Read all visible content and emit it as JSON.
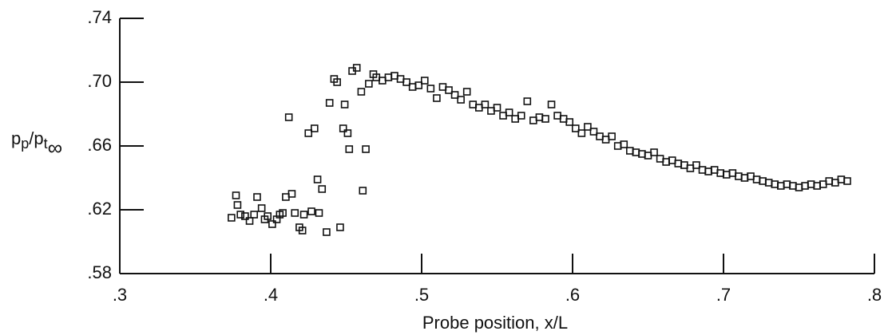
{
  "chart_data": {
    "type": "scatter",
    "x_label": "Probe position, x/L",
    "y_label_parts": [
      "p",
      "p",
      "/p",
      "t",
      "∞"
    ],
    "marker": "square",
    "color": "#111111",
    "xlim": [
      0.3,
      0.8
    ],
    "ylim": [
      0.58,
      0.74
    ],
    "xticks": [
      {
        "value": 0.3,
        "label": ".3"
      },
      {
        "value": 0.4,
        "label": ".4"
      },
      {
        "value": 0.5,
        "label": ".5"
      },
      {
        "value": 0.6,
        "label": ".6"
      },
      {
        "value": 0.7,
        "label": ".7"
      },
      {
        "value": 0.8,
        "label": ".8"
      }
    ],
    "yticks": [
      {
        "value": 0.58,
        "label": ".58"
      },
      {
        "value": 0.62,
        "label": ".62"
      },
      {
        "value": 0.66,
        "label": ".66"
      },
      {
        "value": 0.7,
        "label": ".70"
      },
      {
        "value": 0.74,
        "label": ".74"
      }
    ],
    "series": [
      {
        "name": null,
        "color": "#111111",
        "x": [
          0.374,
          0.377,
          0.378,
          0.38,
          0.383,
          0.386,
          0.389,
          0.391,
          0.394,
          0.396,
          0.398,
          0.401,
          0.404,
          0.406,
          0.408,
          0.41,
          0.412,
          0.414,
          0.416,
          0.419,
          0.421,
          0.422,
          0.425,
          0.427,
          0.429,
          0.431,
          0.432,
          0.434,
          0.437,
          0.439,
          0.442,
          0.444,
          0.446,
          0.448,
          0.449,
          0.451,
          0.452,
          0.454,
          0.457,
          0.46,
          0.461,
          0.463,
          0.465,
          0.468,
          0.47,
          0.474,
          0.478,
          0.482,
          0.486,
          0.49,
          0.494,
          0.498,
          0.502,
          0.506,
          0.51,
          0.514,
          0.518,
          0.522,
          0.526,
          0.53,
          0.534,
          0.538,
          0.542,
          0.546,
          0.55,
          0.554,
          0.558,
          0.562,
          0.566,
          0.57,
          0.574,
          0.578,
          0.582,
          0.586,
          0.59,
          0.594,
          0.598,
          0.602,
          0.606,
          0.61,
          0.614,
          0.618,
          0.622,
          0.626,
          0.63,
          0.634,
          0.638,
          0.642,
          0.646,
          0.65,
          0.654,
          0.658,
          0.662,
          0.666,
          0.67,
          0.674,
          0.678,
          0.682,
          0.686,
          0.69,
          0.694,
          0.698,
          0.702,
          0.706,
          0.71,
          0.714,
          0.718,
          0.722,
          0.726,
          0.73,
          0.734,
          0.738,
          0.742,
          0.746,
          0.75,
          0.754,
          0.758,
          0.762,
          0.766,
          0.77,
          0.774,
          0.778,
          0.782
        ],
        "values": [
          0.615,
          0.629,
          0.623,
          0.617,
          0.616,
          0.613,
          0.617,
          0.628,
          0.621,
          0.614,
          0.616,
          0.611,
          0.614,
          0.617,
          0.618,
          0.628,
          0.678,
          0.63,
          0.618,
          0.609,
          0.607,
          0.617,
          0.668,
          0.619,
          0.671,
          0.639,
          0.618,
          0.633,
          0.606,
          0.687,
          0.702,
          0.7,
          0.609,
          0.671,
          0.686,
          0.668,
          0.658,
          0.707,
          0.709,
          0.694,
          0.632,
          0.658,
          0.699,
          0.705,
          0.703,
          0.701,
          0.703,
          0.704,
          0.702,
          0.7,
          0.697,
          0.698,
          0.701,
          0.696,
          0.69,
          0.697,
          0.695,
          0.692,
          0.689,
          0.694,
          0.686,
          0.684,
          0.686,
          0.682,
          0.684,
          0.679,
          0.681,
          0.677,
          0.679,
          0.688,
          0.676,
          0.678,
          0.677,
          0.686,
          0.679,
          0.677,
          0.675,
          0.671,
          0.668,
          0.672,
          0.669,
          0.666,
          0.664,
          0.666,
          0.66,
          0.661,
          0.657,
          0.656,
          0.655,
          0.654,
          0.656,
          0.652,
          0.65,
          0.651,
          0.649,
          0.648,
          0.646,
          0.648,
          0.645,
          0.644,
          0.645,
          0.643,
          0.642,
          0.643,
          0.641,
          0.64,
          0.641,
          0.639,
          0.638,
          0.637,
          0.636,
          0.635,
          0.636,
          0.635,
          0.634,
          0.635,
          0.636,
          0.635,
          0.636,
          0.638,
          0.637,
          0.639,
          0.638
        ]
      }
    ]
  }
}
